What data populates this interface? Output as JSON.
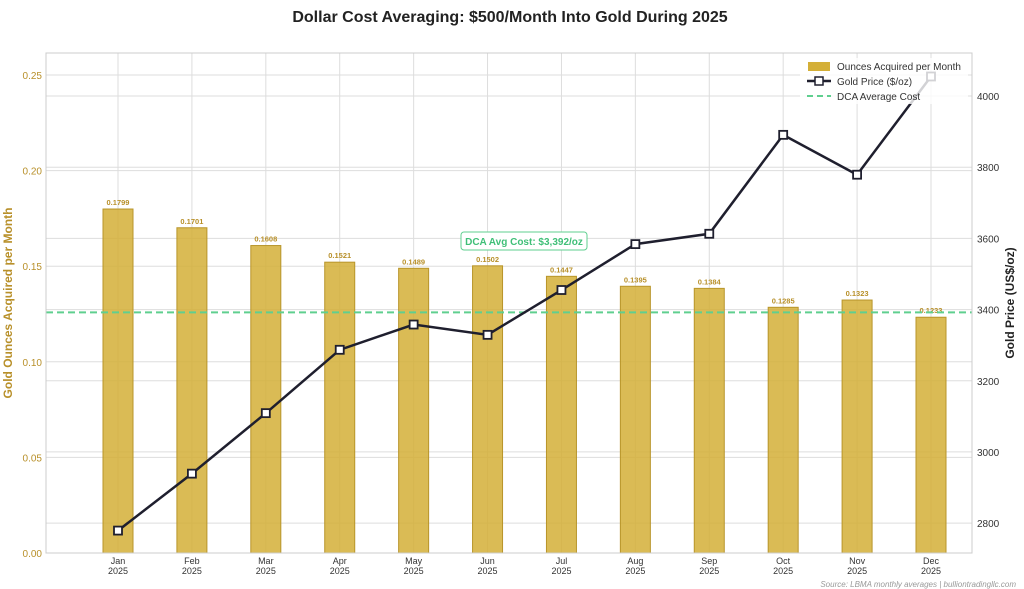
{
  "chart_data": {
    "type": "bar+line",
    "title": "Dollar Cost Averaging: $500/Month Into Gold During 2025",
    "categories": [
      "Jan\n2025",
      "Feb\n2025",
      "Mar\n2025",
      "Apr\n2025",
      "May\n2025",
      "Jun\n2025",
      "Jul\n2025",
      "Aug\n2025",
      "Sep\n2025",
      "Oct\n2025",
      "Nov\n2025",
      "Dec\n2025"
    ],
    "ylabel_left": "Gold Ounces Acquired per Month",
    "ylabel_right": "Gold Price (US$/oz)",
    "ylim_left": [
      0,
      0.2615
    ],
    "ylim_right": [
      2716,
      4121
    ],
    "yticks_left": [
      "0.00",
      "0.05",
      "0.10",
      "0.15",
      "0.20",
      "0.25"
    ],
    "yticks_right": [
      "2800",
      "3000",
      "3200",
      "3400",
      "3600",
      "3800",
      "4000"
    ],
    "grid": true,
    "legend_position": "top-right",
    "series": [
      {
        "name": "Ounces Acquired per Month",
        "type": "bar",
        "axis": "left",
        "color": "#d4af37",
        "values": [
          0.1799,
          0.1701,
          0.1608,
          0.1521,
          0.1489,
          0.1502,
          0.1447,
          0.1395,
          0.1384,
          0.1285,
          0.1323,
          0.1233
        ],
        "labels": [
          "0.1799",
          "0.1701",
          "0.1608",
          "0.1521",
          "0.1489",
          "0.1502",
          "0.1447",
          "0.1395",
          "0.1384",
          "0.1285",
          "0.1323",
          "0.1233"
        ]
      },
      {
        "name": "Gold Price ($/oz)",
        "type": "line",
        "axis": "right",
        "color": "#1f1f2e",
        "values": [
          2779,
          2939,
          3109,
          3287,
          3358,
          3329,
          3455,
          3584,
          3613,
          3891,
          3779,
          4055
        ]
      },
      {
        "name": "DCA Average Cost",
        "type": "hline",
        "axis": "right",
        "color": "#5fcf8f",
        "value": 3392
      }
    ],
    "annotation": "DCA Avg Cost: $3,392/oz",
    "source": "Source: LBMA monthly averages | bulliontradingllc.com"
  }
}
